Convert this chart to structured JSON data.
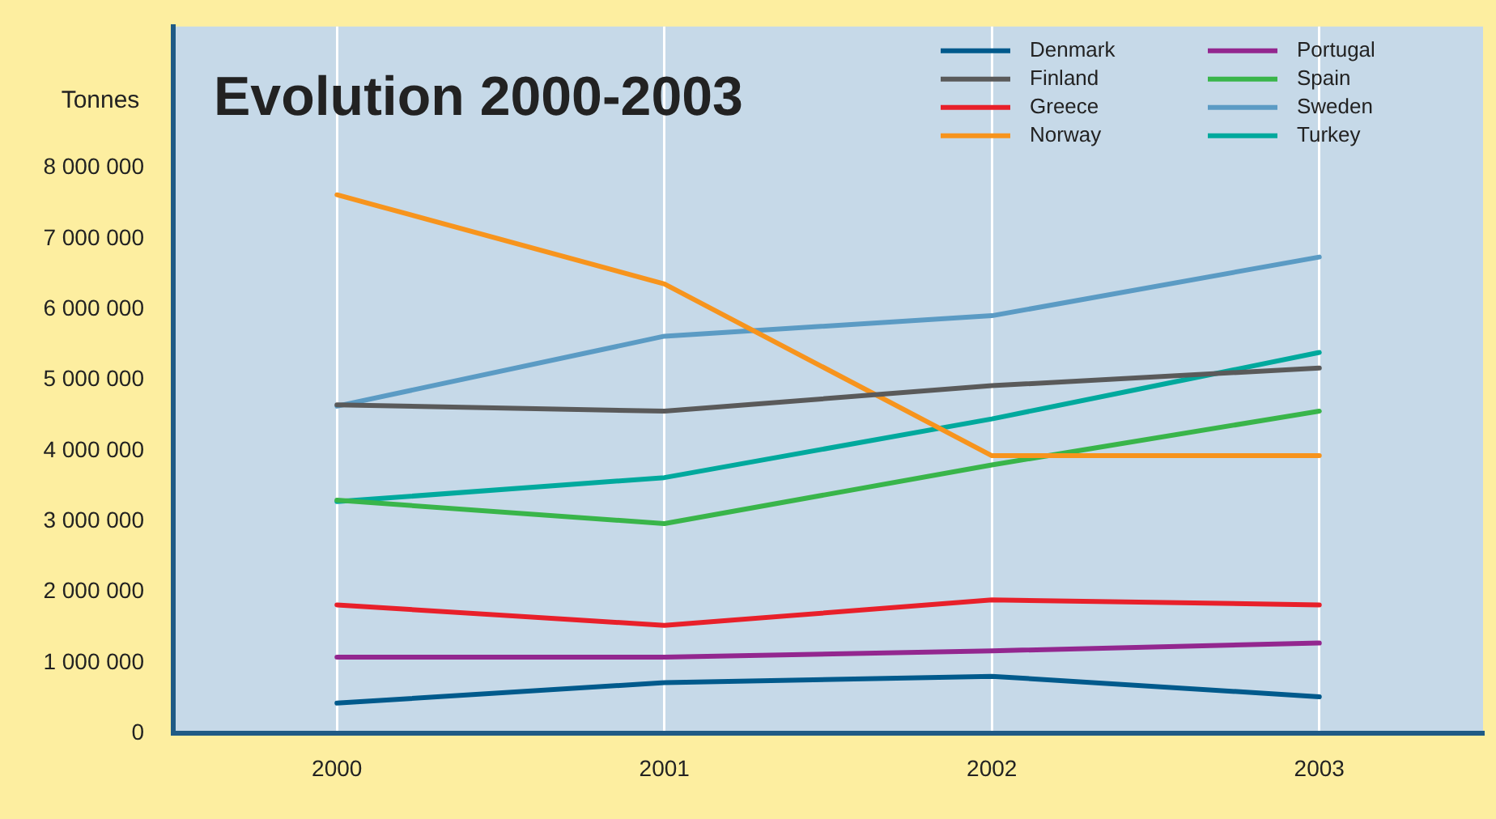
{
  "chart_data": {
    "type": "line",
    "title": "Evolution 2000-2003",
    "ylabel": "Tonnes",
    "categories": [
      "2000",
      "2001",
      "2002",
      "2003"
    ],
    "series": [
      {
        "name": "Denmark",
        "color": "#005a8c",
        "values": [
          430000,
          720000,
          810000,
          520000
        ]
      },
      {
        "name": "Finland",
        "color": "#5a5a5a",
        "values": [
          4650000,
          4560000,
          4920000,
          5170000
        ]
      },
      {
        "name": "Greece",
        "color": "#e8202a",
        "values": [
          1820000,
          1530000,
          1890000,
          1820000
        ]
      },
      {
        "name": "Norway",
        "color": "#f7941d",
        "values": [
          7620000,
          6360000,
          3930000,
          3930000
        ]
      },
      {
        "name": "Portugal",
        "color": "#93278f",
        "values": [
          1080000,
          1080000,
          1170000,
          1280000
        ]
      },
      {
        "name": "Spain",
        "color": "#39b54a",
        "values": [
          3300000,
          2970000,
          3800000,
          4560000
        ]
      },
      {
        "name": "Sweden",
        "color": "#5b9bc4",
        "values": [
          4630000,
          5620000,
          5910000,
          6740000
        ]
      },
      {
        "name": "Turkey",
        "color": "#00a99d",
        "values": [
          3280000,
          3620000,
          4450000,
          5390000
        ]
      }
    ],
    "ylim": [
      0,
      10000000
    ],
    "yticks": [
      0,
      {
        "value": 1000000,
        "label": "1 000 000"
      },
      {
        "value": 2000000,
        "label": "2 000 000"
      },
      {
        "value": 3000000,
        "label": "3 000 000"
      },
      {
        "value": 4000000,
        "label": "4 000 000"
      },
      {
        "value": 5000000,
        "label": "5 000 000"
      },
      {
        "value": 6000000,
        "label": "6 000 000"
      },
      {
        "value": 7000000,
        "label": "7 000 000"
      },
      {
        "value": 8000000,
        "label": "8 000 000"
      }
    ],
    "grid": "x",
    "legend": "top right",
    "marker": "none",
    "line_style": "solid"
  }
}
